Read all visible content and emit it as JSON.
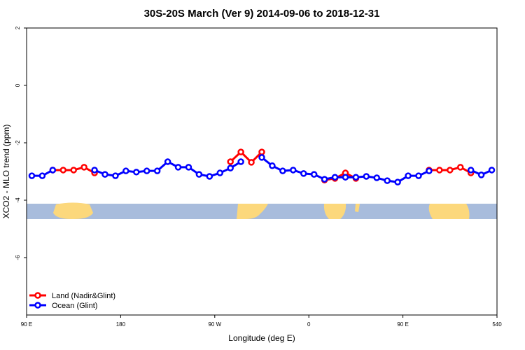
{
  "chart_data": {
    "type": "line",
    "title": "30S-20S March (Ver 9)   2014-09-06 to 2018-12-31",
    "x_label": "Longitude (deg E)",
    "y_label": "XCO2 - MLO trend (ppm)",
    "x": [
      95,
      105,
      115,
      125,
      135,
      145,
      155,
      165,
      175,
      185,
      195,
      205,
      215,
      225,
      235,
      245,
      255,
      265,
      275,
      285,
      295,
      305,
      315,
      325,
      335,
      345,
      355,
      365,
      375,
      385,
      395,
      405,
      415,
      425,
      435,
      445,
      455,
      465,
      475,
      485,
      495,
      505,
      515,
      525,
      535
    ],
    "series": [
      {
        "name": "Land (Nadir&Glint)",
        "color": "#ff0000",
        "values": [
          null,
          null,
          -2.95,
          -2.95,
          -2.95,
          -2.85,
          -3.05,
          null,
          null,
          null,
          null,
          null,
          null,
          null,
          null,
          null,
          null,
          null,
          null,
          -2.66,
          -2.32,
          -2.68,
          -2.32,
          null,
          null,
          null,
          null,
          null,
          -3.3,
          -3.24,
          -3.05,
          -3.24,
          null,
          null,
          null,
          null,
          null,
          null,
          -2.95,
          -2.95,
          -2.95,
          -2.85,
          -3.05,
          null,
          null
        ]
      },
      {
        "name": "Ocean (Glint)",
        "color": "#0000ff",
        "values": [
          -3.15,
          -3.15,
          -2.95,
          null,
          null,
          null,
          -2.95,
          -3.1,
          -3.15,
          -2.98,
          -3.02,
          -2.98,
          -2.98,
          -2.66,
          -2.85,
          -2.85,
          -3.1,
          -3.17,
          -3.05,
          -2.88,
          -2.66,
          null,
          -2.51,
          -2.8,
          -2.98,
          -2.95,
          -3.07,
          -3.1,
          -3.27,
          -3.2,
          -3.2,
          -3.2,
          -3.17,
          -3.22,
          -3.32,
          -3.37,
          -3.15,
          -3.15,
          -2.98,
          null,
          null,
          null,
          -2.95,
          -3.12,
          -2.95
        ]
      }
    ],
    "xlim": [
      90,
      540
    ],
    "xticks": [
      {
        "value": 90,
        "label": "90 E"
      },
      180,
      {
        "value": 270,
        "label": "90 W"
      },
      {
        "value": 360,
        "label": "0"
      },
      {
        "value": 450,
        "label": "90 E"
      },
      540
    ],
    "ylim": [
      -8,
      2
    ],
    "yticks": [
      2,
      0,
      -2,
      -4,
      -6
    ],
    "legend": "bottom-left"
  }
}
